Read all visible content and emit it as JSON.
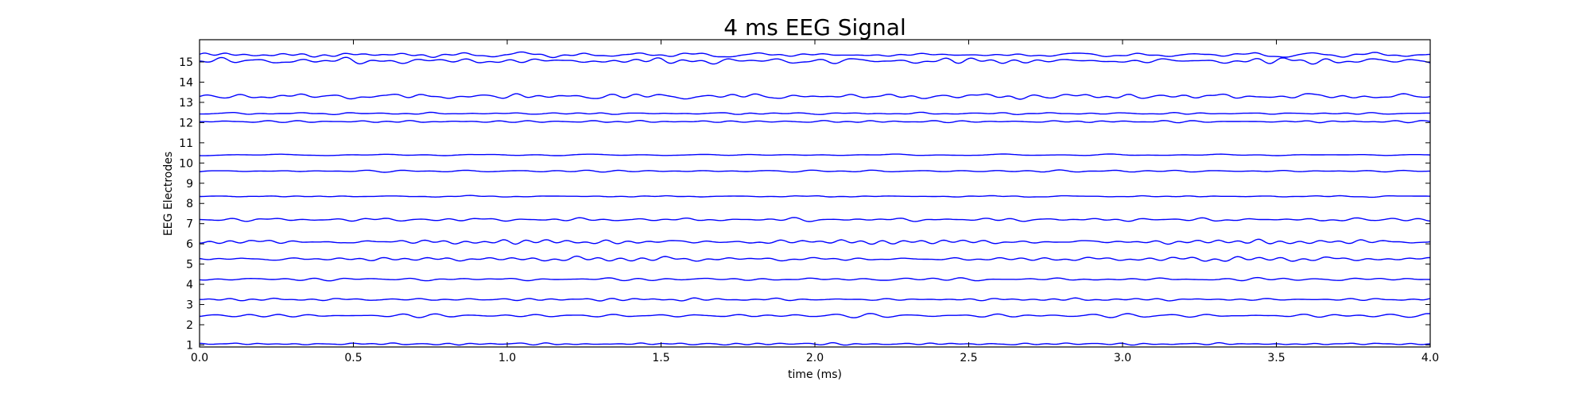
{
  "chart_data": {
    "type": "line",
    "title": "4 ms EEG Signal",
    "xlabel": "time (ms)",
    "ylabel": "EEG Electrodes",
    "xlim": [
      0.0,
      4.0
    ],
    "ylim": [
      0.9,
      16.1
    ],
    "x_ticks": [
      "0.0",
      "0.5",
      "1.0",
      "1.5",
      "2.0",
      "2.5",
      "3.0",
      "3.5",
      "4.0"
    ],
    "y_ticks": [
      "1",
      "2",
      "3",
      "4",
      "5",
      "6",
      "7",
      "8",
      "9",
      "10",
      "11",
      "12",
      "13",
      "14",
      "15"
    ],
    "grid": false,
    "line_color": "#0000ff",
    "series": [
      {
        "baseline": 1.05,
        "amplitude": 0.05
      },
      {
        "baseline": 2.45,
        "amplitude": 0.09
      },
      {
        "baseline": 3.25,
        "amplitude": 0.06
      },
      {
        "baseline": 4.25,
        "amplitude": 0.07
      },
      {
        "baseline": 5.25,
        "amplitude": 0.1
      },
      {
        "baseline": 6.1,
        "amplitude": 0.1
      },
      {
        "baseline": 7.2,
        "amplitude": 0.08
      },
      {
        "baseline": 8.35,
        "amplitude": 0.04
      },
      {
        "baseline": 9.6,
        "amplitude": 0.05
      },
      {
        "baseline": 10.4,
        "amplitude": 0.04
      },
      {
        "baseline": 12.05,
        "amplitude": 0.05
      },
      {
        "baseline": 12.45,
        "amplitude": 0.05
      },
      {
        "baseline": 13.3,
        "amplitude": 0.13
      },
      {
        "baseline": 15.05,
        "amplitude": 0.14
      },
      {
        "baseline": 15.35,
        "amplitude": 0.12
      }
    ]
  }
}
